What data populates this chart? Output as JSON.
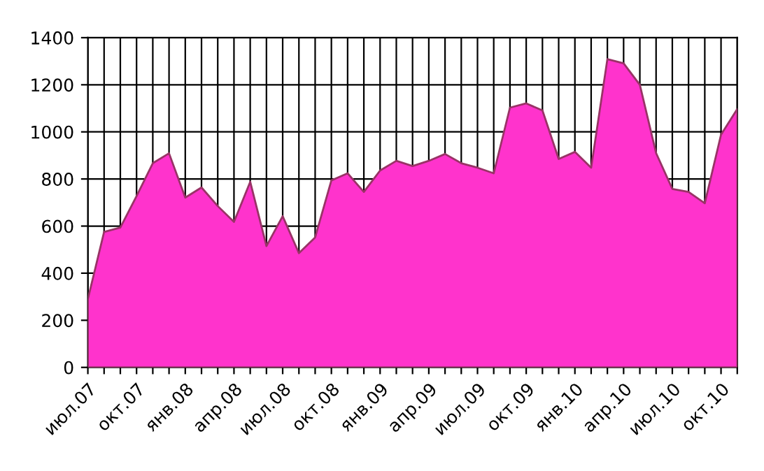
{
  "chart_data": {
    "type": "area",
    "categories": [
      "июл.07",
      null,
      null,
      "окт.07",
      null,
      null,
      "янв.08",
      null,
      null,
      "апр.08",
      null,
      null,
      "июл.08",
      null,
      null,
      "окт.08",
      null,
      null,
      "янв.09",
      null,
      null,
      "апр.09",
      null,
      null,
      "июл.09",
      null,
      null,
      "окт.09",
      null,
      null,
      "янв.10",
      null,
      null,
      "апр.10",
      null,
      null,
      "июл.10",
      null,
      null,
      "окт.10",
      null
    ],
    "values": [
      290,
      575,
      594,
      727,
      867,
      909,
      721,
      764,
      685,
      618,
      788,
      515,
      642,
      485,
      552,
      794,
      824,
      745,
      836,
      877,
      855,
      877,
      906,
      867,
      848,
      824,
      1103,
      1121,
      1091,
      885,
      915,
      848,
      1309,
      1291,
      1200,
      910,
      758,
      745,
      697,
      988,
      1097
    ],
    "color": "#ff33cc",
    "ylim": [
      0,
      1400
    ],
    "yticks": [
      0,
      200,
      400,
      600,
      800,
      1000,
      1200,
      1400
    ],
    "grid": true
  }
}
